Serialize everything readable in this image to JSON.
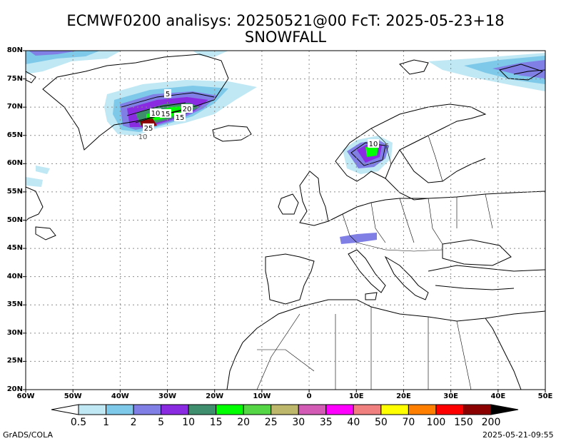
{
  "title_line1": "ECMWF0200 analisys: 20250521@00 FcT: 2025-05-23+18",
  "title_line2": "SNOWFALL",
  "lat_labels": [
    "80N",
    "75N",
    "70N",
    "65N",
    "60N",
    "55N",
    "50N",
    "45N",
    "40N",
    "35N",
    "30N",
    "25N",
    "20N"
  ],
  "lon_labels": [
    "60W",
    "50W",
    "40W",
    "30W",
    "20W",
    "10W",
    "0",
    "10E",
    "20E",
    "30E",
    "40E",
    "50E"
  ],
  "colorbar": {
    "levels": [
      "0.5",
      "1",
      "2",
      "5",
      "10",
      "15",
      "20",
      "25",
      "30",
      "35",
      "40",
      "50",
      "70",
      "100",
      "150",
      "200"
    ],
    "colors": [
      "#bfe8f4",
      "#7ec8ea",
      "#7f7fe6",
      "#8a2be2",
      "#3f8f6f",
      "#00ff00",
      "#55d645",
      "#bdb76b",
      "#d35bb5",
      "#ff00ff",
      "#f08080",
      "#ffff00",
      "#ff7f00",
      "#ff0000",
      "#8b0000"
    ]
  },
  "contour_labels": [
    "5",
    "20",
    "10",
    "15",
    "15",
    "25",
    "10",
    "10",
    "5"
  ],
  "footer_left": "GrADS/COLA",
  "footer_right": "2025-05-21-09:55"
}
